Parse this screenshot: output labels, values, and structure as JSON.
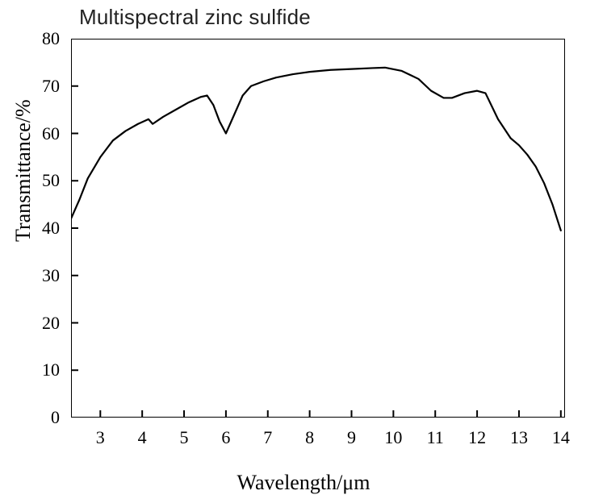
{
  "chart": {
    "type": "line",
    "title": "Multispectral zinc sulfide",
    "title_fontsize": 26,
    "title_fontfamily": "sans-serif",
    "title_color": "#222222",
    "xlabel": "Wavelength/μm",
    "ylabel": "Transmittance/%",
    "axis_label_fontsize": 26,
    "tick_label_fontsize": 22,
    "background_color": "#ffffff",
    "line_color": "#000000",
    "line_width": 2.2,
    "axis_color": "#000000",
    "axis_width": 2,
    "tick_length": 9,
    "xlim": [
      2.3,
      14.1
    ],
    "ylim": [
      0,
      80
    ],
    "xticks": [
      3,
      4,
      5,
      6,
      7,
      8,
      9,
      10,
      11,
      12,
      13,
      14
    ],
    "yticks": [
      0,
      10,
      20,
      30,
      40,
      50,
      60,
      70,
      80
    ],
    "grid": false,
    "series": [
      {
        "name": "transmittance",
        "x": [
          2.3,
          2.5,
          2.7,
          3.0,
          3.3,
          3.6,
          3.9,
          4.15,
          4.25,
          4.5,
          4.8,
          5.1,
          5.4,
          5.55,
          5.7,
          5.85,
          6.0,
          6.2,
          6.4,
          6.6,
          6.9,
          7.2,
          7.6,
          8.0,
          8.5,
          9.0,
          9.5,
          9.8,
          10.2,
          10.6,
          10.9,
          11.2,
          11.4,
          11.7,
          12.0,
          12.2,
          12.5,
          12.8,
          13.0,
          13.2,
          13.4,
          13.6,
          13.8,
          14.0
        ],
        "y": [
          42.0,
          46.0,
          50.5,
          55.0,
          58.5,
          60.5,
          62.0,
          63.0,
          62.0,
          63.5,
          65.0,
          66.5,
          67.7,
          68.0,
          66.0,
          62.5,
          60.0,
          64.0,
          68.0,
          70.0,
          71.0,
          71.8,
          72.5,
          73.0,
          73.4,
          73.6,
          73.8,
          73.9,
          73.2,
          71.5,
          69.0,
          67.5,
          67.5,
          68.5,
          69.0,
          68.5,
          63.0,
          59.0,
          57.5,
          55.5,
          53.0,
          49.5,
          45.0,
          39.5
        ]
      }
    ]
  }
}
